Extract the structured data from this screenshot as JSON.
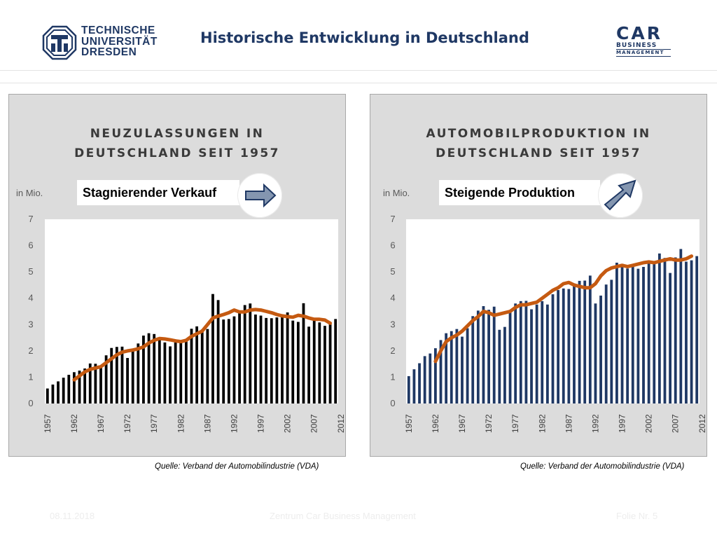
{
  "header": {
    "university_lines": [
      "TECHNISCHE",
      "UNIVERSITÄT",
      "DRESDEN"
    ],
    "title": "Historische Entwicklung in Deutschland",
    "car_logo": {
      "line1": "CAR",
      "line2": "BUSINESS",
      "line3": "MANAGEMENT"
    }
  },
  "colors": {
    "brand": "#1f3864",
    "bar_left": "#000000",
    "bar_right": "#1f3864",
    "trend": "#c55a11",
    "arrow_fill": "#8496b0",
    "panel_bg": "#dcdcdc"
  },
  "panels": [
    {
      "title_lines": [
        "NEUZULASSUNGEN IN",
        "DEUTSCHLAND SEIT 1957"
      ],
      "unit": "in Mio.",
      "callout": "Stagnierender Verkauf",
      "arrow_icon": "arrow-right-icon",
      "source": "Quelle: Verband der Automobilindustrie (VDA)"
    },
    {
      "title_lines": [
        "AUTOMOBILPRODUKTION IN",
        "DEUTSCHLAND SEIT 1957"
      ],
      "unit": "in Mio.",
      "callout": "Steigende Produktion",
      "arrow_icon": "arrow-up-right-icon",
      "source": "Quelle: Verband der Automobilindustrie (VDA)"
    }
  ],
  "chart_data": [
    {
      "type": "bar",
      "title": "NEUZULASSUNGEN IN DEUTSCHLAND SEIT 1957",
      "ylabel": "in Mio.",
      "ylim": [
        0,
        7
      ],
      "yticks": [
        0,
        1,
        2,
        3,
        4,
        5,
        6,
        7
      ],
      "x_tick_labels": [
        "1957",
        "1962",
        "1967",
        "1972",
        "1977",
        "1982",
        "1987",
        "1992",
        "1997",
        "2002",
        "2007",
        "2012"
      ],
      "x_start": 1957,
      "values": [
        0.57,
        0.72,
        0.84,
        0.98,
        1.09,
        1.19,
        1.25,
        1.33,
        1.52,
        1.51,
        1.37,
        1.83,
        2.11,
        2.15,
        2.16,
        1.73,
        2.06,
        2.28,
        2.58,
        2.67,
        2.64,
        2.43,
        2.32,
        2.17,
        2.32,
        2.4,
        2.38,
        2.84,
        2.93,
        2.81,
        2.83,
        4.16,
        3.93,
        3.19,
        3.21,
        3.31,
        3.5,
        3.74,
        3.8,
        3.38,
        3.34,
        3.25,
        3.24,
        3.27,
        3.34,
        3.46,
        3.15,
        3.1,
        3.81,
        2.92,
        3.17,
        3.08,
        2.95,
        3.04,
        3.21
      ],
      "trend": {
        "name": "",
        "x_start": 1962,
        "values": [
          0.9,
          1.05,
          1.2,
          1.3,
          1.35,
          1.4,
          1.55,
          1.7,
          1.85,
          1.95,
          2.0,
          2.03,
          2.08,
          2.15,
          2.3,
          2.4,
          2.47,
          2.45,
          2.42,
          2.38,
          2.35,
          2.4,
          2.55,
          2.65,
          2.75,
          3.0,
          3.25,
          3.32,
          3.38,
          3.45,
          3.55,
          3.48,
          3.48,
          3.55,
          3.57,
          3.55,
          3.5,
          3.45,
          3.38,
          3.33,
          3.3,
          3.28,
          3.35,
          3.32,
          3.25,
          3.2,
          3.2,
          3.17,
          3.05
        ]
      }
    },
    {
      "type": "bar",
      "title": "AUTOMOBILPRODUKTION IN DEUTSCHLAND SEIT 1957",
      "ylabel": "in Mio.",
      "ylim": [
        0,
        7
      ],
      "yticks": [
        0,
        1,
        2,
        3,
        4,
        5,
        6,
        7
      ],
      "x_tick_labels": [
        "1957",
        "1962",
        "1967",
        "1972",
        "1977",
        "1982",
        "1987",
        "1992",
        "1997",
        "2002",
        "2007",
        "2012"
      ],
      "x_start": 1957,
      "values": [
        1.04,
        1.3,
        1.53,
        1.8,
        1.9,
        2.1,
        2.41,
        2.67,
        2.75,
        2.83,
        2.54,
        2.86,
        3.32,
        3.53,
        3.7,
        3.56,
        3.68,
        2.8,
        2.91,
        3.55,
        3.8,
        3.89,
        3.9,
        3.58,
        3.76,
        3.89,
        3.76,
        4.15,
        4.31,
        4.37,
        4.35,
        4.56,
        4.66,
        4.67,
        4.86,
        3.8,
        4.1,
        4.52,
        4.7,
        5.35,
        5.31,
        5.13,
        5.29,
        5.12,
        5.19,
        5.34,
        5.36,
        5.7,
        5.53,
        4.96,
        5.55,
        5.87,
        5.39,
        5.44,
        5.6
      ],
      "trend": {
        "name": "",
        "x_start": 1962,
        "values": [
          1.6,
          2.0,
          2.35,
          2.5,
          2.6,
          2.75,
          2.95,
          3.15,
          3.3,
          3.5,
          3.45,
          3.35,
          3.4,
          3.45,
          3.5,
          3.65,
          3.75,
          3.75,
          3.8,
          3.85,
          4.0,
          4.15,
          4.3,
          4.4,
          4.55,
          4.6,
          4.5,
          4.45,
          4.4,
          4.4,
          4.55,
          4.85,
          5.05,
          5.15,
          5.2,
          5.25,
          5.2,
          5.25,
          5.3,
          5.35,
          5.38,
          5.35,
          5.4,
          5.45,
          5.5,
          5.45,
          5.45,
          5.5,
          5.6
        ]
      }
    }
  ],
  "footer": {
    "date": "08.11.2018",
    "center": "Zentrum Car Business Management",
    "page": "Folie Nr. 5"
  }
}
